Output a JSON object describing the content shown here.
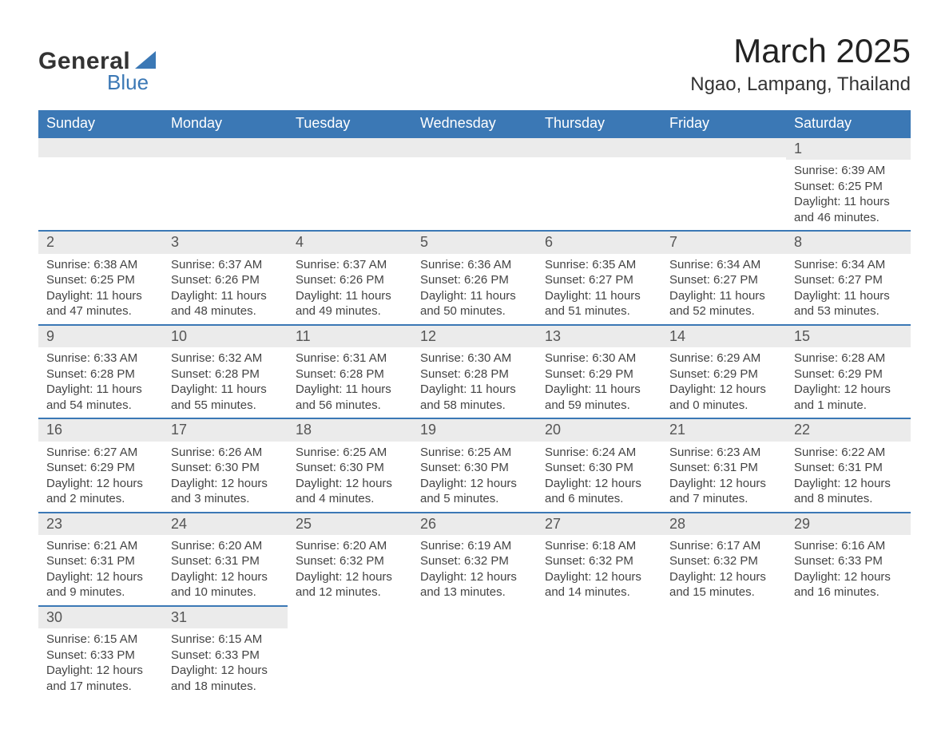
{
  "brand": {
    "general": "General",
    "blue": "Blue"
  },
  "title": "March 2025",
  "location": "Ngao, Lampang, Thailand",
  "colors": {
    "header_bg": "#3b78b5",
    "header_text": "#ffffff",
    "daynum_bg": "#ebebeb",
    "row_border": "#3b78b5",
    "body_text": "#444444",
    "title_text": "#222222",
    "page_bg": "#ffffff"
  },
  "typography": {
    "title_fontsize": 42,
    "location_fontsize": 24,
    "dayname_fontsize": 18,
    "daynum_fontsize": 18,
    "body_fontsize": 15
  },
  "calendar": {
    "type": "table",
    "columns": [
      "Sunday",
      "Monday",
      "Tuesday",
      "Wednesday",
      "Thursday",
      "Friday",
      "Saturday"
    ],
    "weeks": [
      [
        null,
        null,
        null,
        null,
        null,
        null,
        {
          "n": "1",
          "sunrise": "Sunrise: 6:39 AM",
          "sunset": "Sunset: 6:25 PM",
          "daylight": "Daylight: 11 hours and 46 minutes."
        }
      ],
      [
        {
          "n": "2",
          "sunrise": "Sunrise: 6:38 AM",
          "sunset": "Sunset: 6:25 PM",
          "daylight": "Daylight: 11 hours and 47 minutes."
        },
        {
          "n": "3",
          "sunrise": "Sunrise: 6:37 AM",
          "sunset": "Sunset: 6:26 PM",
          "daylight": "Daylight: 11 hours and 48 minutes."
        },
        {
          "n": "4",
          "sunrise": "Sunrise: 6:37 AM",
          "sunset": "Sunset: 6:26 PM",
          "daylight": "Daylight: 11 hours and 49 minutes."
        },
        {
          "n": "5",
          "sunrise": "Sunrise: 6:36 AM",
          "sunset": "Sunset: 6:26 PM",
          "daylight": "Daylight: 11 hours and 50 minutes."
        },
        {
          "n": "6",
          "sunrise": "Sunrise: 6:35 AM",
          "sunset": "Sunset: 6:27 PM",
          "daylight": "Daylight: 11 hours and 51 minutes."
        },
        {
          "n": "7",
          "sunrise": "Sunrise: 6:34 AM",
          "sunset": "Sunset: 6:27 PM",
          "daylight": "Daylight: 11 hours and 52 minutes."
        },
        {
          "n": "8",
          "sunrise": "Sunrise: 6:34 AM",
          "sunset": "Sunset: 6:27 PM",
          "daylight": "Daylight: 11 hours and 53 minutes."
        }
      ],
      [
        {
          "n": "9",
          "sunrise": "Sunrise: 6:33 AM",
          "sunset": "Sunset: 6:28 PM",
          "daylight": "Daylight: 11 hours and 54 minutes."
        },
        {
          "n": "10",
          "sunrise": "Sunrise: 6:32 AM",
          "sunset": "Sunset: 6:28 PM",
          "daylight": "Daylight: 11 hours and 55 minutes."
        },
        {
          "n": "11",
          "sunrise": "Sunrise: 6:31 AM",
          "sunset": "Sunset: 6:28 PM",
          "daylight": "Daylight: 11 hours and 56 minutes."
        },
        {
          "n": "12",
          "sunrise": "Sunrise: 6:30 AM",
          "sunset": "Sunset: 6:28 PM",
          "daylight": "Daylight: 11 hours and 58 minutes."
        },
        {
          "n": "13",
          "sunrise": "Sunrise: 6:30 AM",
          "sunset": "Sunset: 6:29 PM",
          "daylight": "Daylight: 11 hours and 59 minutes."
        },
        {
          "n": "14",
          "sunrise": "Sunrise: 6:29 AM",
          "sunset": "Sunset: 6:29 PM",
          "daylight": "Daylight: 12 hours and 0 minutes."
        },
        {
          "n": "15",
          "sunrise": "Sunrise: 6:28 AM",
          "sunset": "Sunset: 6:29 PM",
          "daylight": "Daylight: 12 hours and 1 minute."
        }
      ],
      [
        {
          "n": "16",
          "sunrise": "Sunrise: 6:27 AM",
          "sunset": "Sunset: 6:29 PM",
          "daylight": "Daylight: 12 hours and 2 minutes."
        },
        {
          "n": "17",
          "sunrise": "Sunrise: 6:26 AM",
          "sunset": "Sunset: 6:30 PM",
          "daylight": "Daylight: 12 hours and 3 minutes."
        },
        {
          "n": "18",
          "sunrise": "Sunrise: 6:25 AM",
          "sunset": "Sunset: 6:30 PM",
          "daylight": "Daylight: 12 hours and 4 minutes."
        },
        {
          "n": "19",
          "sunrise": "Sunrise: 6:25 AM",
          "sunset": "Sunset: 6:30 PM",
          "daylight": "Daylight: 12 hours and 5 minutes."
        },
        {
          "n": "20",
          "sunrise": "Sunrise: 6:24 AM",
          "sunset": "Sunset: 6:30 PM",
          "daylight": "Daylight: 12 hours and 6 minutes."
        },
        {
          "n": "21",
          "sunrise": "Sunrise: 6:23 AM",
          "sunset": "Sunset: 6:31 PM",
          "daylight": "Daylight: 12 hours and 7 minutes."
        },
        {
          "n": "22",
          "sunrise": "Sunrise: 6:22 AM",
          "sunset": "Sunset: 6:31 PM",
          "daylight": "Daylight: 12 hours and 8 minutes."
        }
      ],
      [
        {
          "n": "23",
          "sunrise": "Sunrise: 6:21 AM",
          "sunset": "Sunset: 6:31 PM",
          "daylight": "Daylight: 12 hours and 9 minutes."
        },
        {
          "n": "24",
          "sunrise": "Sunrise: 6:20 AM",
          "sunset": "Sunset: 6:31 PM",
          "daylight": "Daylight: 12 hours and 10 minutes."
        },
        {
          "n": "25",
          "sunrise": "Sunrise: 6:20 AM",
          "sunset": "Sunset: 6:32 PM",
          "daylight": "Daylight: 12 hours and 12 minutes."
        },
        {
          "n": "26",
          "sunrise": "Sunrise: 6:19 AM",
          "sunset": "Sunset: 6:32 PM",
          "daylight": "Daylight: 12 hours and 13 minutes."
        },
        {
          "n": "27",
          "sunrise": "Sunrise: 6:18 AM",
          "sunset": "Sunset: 6:32 PM",
          "daylight": "Daylight: 12 hours and 14 minutes."
        },
        {
          "n": "28",
          "sunrise": "Sunrise: 6:17 AM",
          "sunset": "Sunset: 6:32 PM",
          "daylight": "Daylight: 12 hours and 15 minutes."
        },
        {
          "n": "29",
          "sunrise": "Sunrise: 6:16 AM",
          "sunset": "Sunset: 6:33 PM",
          "daylight": "Daylight: 12 hours and 16 minutes."
        }
      ],
      [
        {
          "n": "30",
          "sunrise": "Sunrise: 6:15 AM",
          "sunset": "Sunset: 6:33 PM",
          "daylight": "Daylight: 12 hours and 17 minutes."
        },
        {
          "n": "31",
          "sunrise": "Sunrise: 6:15 AM",
          "sunset": "Sunset: 6:33 PM",
          "daylight": "Daylight: 12 hours and 18 minutes."
        },
        null,
        null,
        null,
        null,
        null
      ]
    ]
  }
}
